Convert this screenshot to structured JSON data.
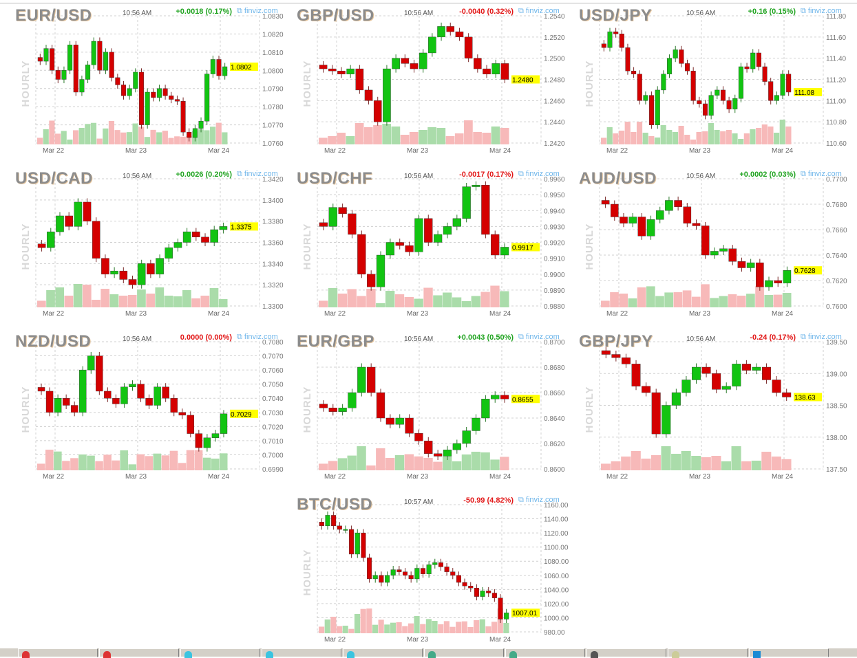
{
  "vertical_label": "HOURLY",
  "brand": "finviz.com",
  "dates": [
    "Mar 22",
    "Mar 23",
    "Mar 24"
  ],
  "colors": {
    "up": "#12c412",
    "down": "#d40000",
    "up_change": "#22a422",
    "down_change": "#e21818",
    "price_tag": "#ffff00",
    "brand": "#6fb6ea"
  },
  "charts": [
    {
      "pair": "EUR/USD",
      "time": "10:56 AM",
      "change": "+0.0018 (0.17%)",
      "direction": "up",
      "price": "1.0802",
      "ticks": [
        "1.0830",
        "1.0820",
        "1.0810",
        "1.0800",
        "1.0790",
        "1.0780",
        "1.0770",
        "1.0760"
      ],
      "hidden_tick": "1.0800",
      "closes": [
        1.0805,
        1.0812,
        1.08,
        1.0795,
        1.08,
        1.0814,
        1.0788,
        1.0795,
        1.0803,
        1.0816,
        1.08,
        1.081,
        1.0796,
        1.0792,
        1.0786,
        1.079,
        1.0799,
        1.077,
        1.0788,
        1.0785,
        1.079,
        1.0786,
        1.0784,
        1.0783,
        1.0766,
        1.0763,
        1.0768,
        1.0772,
        1.0798,
        1.0806,
        1.0797,
        1.0802
      ]
    },
    {
      "pair": "GBP/USD",
      "time": "10:56 AM",
      "change": "-0.0040 (0.32%)",
      "direction": "down",
      "price": "1.2480",
      "ticks": [
        "1.2540",
        "1.2520",
        "1.2500",
        "1.2480",
        "1.2460",
        "1.2440",
        "1.2420"
      ],
      "hidden_tick": "1.2480",
      "closes": [
        1.249,
        1.2488,
        1.2485,
        1.249,
        1.247,
        1.246,
        1.244,
        1.249,
        1.25,
        1.2495,
        1.249,
        1.2505,
        1.252,
        1.253,
        1.2525,
        1.252,
        1.25,
        1.249,
        1.2485,
        1.2495,
        1.248
      ]
    },
    {
      "pair": "USD/JPY",
      "time": "10:56 AM",
      "change": "+0.16 (0.15%)",
      "direction": "up",
      "price": "111.08",
      "ticks": [
        "111.80",
        "111.60",
        "111.40",
        "111.20",
        "111.00",
        "110.80",
        "110.60"
      ],
      "hidden_tick": "",
      "closes": [
        111.5,
        111.65,
        111.63,
        111.5,
        111.28,
        111.25,
        111.0,
        111.05,
        110.77,
        111.1,
        111.25,
        111.4,
        111.48,
        111.35,
        111.28,
        111.0,
        110.97,
        110.86,
        111.05,
        111.1,
        111.0,
        110.92,
        111.02,
        111.32,
        111.3,
        111.45,
        111.32,
        111.18,
        111.0,
        111.05,
        111.25,
        111.08
      ]
    },
    {
      "pair": "USD/CAD",
      "time": "10:56 AM",
      "change": "+0.0026 (0.20%)",
      "direction": "up",
      "price": "1.3375",
      "ticks": [
        "1.3420",
        "1.3400",
        "1.3380",
        "1.3360",
        "1.3340",
        "1.3320",
        "1.3300"
      ],
      "hidden_tick": "1.3380",
      "closes": [
        1.3355,
        1.337,
        1.3385,
        1.3375,
        1.3398,
        1.338,
        1.3345,
        1.333,
        1.3333,
        1.3325,
        1.332,
        1.334,
        1.333,
        1.3345,
        1.3355,
        1.336,
        1.337,
        1.3365,
        1.336,
        1.3372,
        1.3375
      ]
    },
    {
      "pair": "USD/CHF",
      "time": "10:56 AM",
      "change": "-0.0017 (0.17%)",
      "direction": "down",
      "price": "0.9917",
      "ticks": [
        "0.9960",
        "0.9950",
        "0.9940",
        "0.9930",
        "0.9920",
        "0.9910",
        "0.9900",
        "0.9890",
        "0.9880"
      ],
      "hidden_tick": "0.9920",
      "closes": [
        0.993,
        0.9942,
        0.9938,
        0.9925,
        0.99,
        0.9892,
        0.9912,
        0.992,
        0.9918,
        0.9914,
        0.9935,
        0.992,
        0.9925,
        0.993,
        0.9935,
        0.9955,
        0.9956,
        0.9925,
        0.9912,
        0.9917
      ]
    },
    {
      "pair": "AUD/USD",
      "time": "10:56 AM",
      "change": "+0.0002 (0.03%)",
      "direction": "up",
      "price": "0.7628",
      "ticks": [
        "0.7700",
        "0.7680",
        "0.7660",
        "0.7640",
        "0.7620",
        "0.7600"
      ],
      "hidden_tick": "",
      "closes": [
        0.768,
        0.767,
        0.7665,
        0.767,
        0.7655,
        0.7668,
        0.7675,
        0.7683,
        0.7678,
        0.7665,
        0.7663,
        0.764,
        0.7643,
        0.7645,
        0.7635,
        0.763,
        0.7634,
        0.7615,
        0.762,
        0.7618,
        0.7628
      ]
    },
    {
      "pair": "NZD/USD",
      "time": "10:56 AM",
      "change": "0.0000 (0.00%)",
      "direction": "down",
      "price": "0.7029",
      "ticks": [
        "0.7080",
        "0.7070",
        "0.7060",
        "0.7050",
        "0.7040",
        "0.7030",
        "0.7020",
        "0.7010",
        "0.7000",
        "0.6990"
      ],
      "hidden_tick": "0.7030",
      "closes": [
        0.7045,
        0.703,
        0.704,
        0.7035,
        0.703,
        0.706,
        0.707,
        0.7045,
        0.704,
        0.7036,
        0.7048,
        0.705,
        0.704,
        0.7035,
        0.7048,
        0.704,
        0.703,
        0.7028,
        0.7015,
        0.7005,
        0.7012,
        0.7015,
        0.7029
      ]
    },
    {
      "pair": "EUR/GBP",
      "time": "10:56 AM",
      "change": "+0.0043 (0.50%)",
      "direction": "up",
      "price": "0.8655",
      "ticks": [
        "0.8700",
        "0.8680",
        "0.8660",
        "0.8640",
        "0.8620",
        "0.8600"
      ],
      "hidden_tick": "",
      "closes": [
        0.8648,
        0.8645,
        0.8648,
        0.866,
        0.868,
        0.866,
        0.864,
        0.8635,
        0.864,
        0.8628,
        0.8622,
        0.8612,
        0.861,
        0.8615,
        0.862,
        0.863,
        0.864,
        0.8655,
        0.8658,
        0.8655
      ]
    },
    {
      "pair": "GBP/JPY",
      "time": "10:56 AM",
      "change": "-0.24 (0.17%)",
      "direction": "down",
      "price": "138.63",
      "ticks": [
        "139.50",
        "139.00",
        "138.50",
        "138.00",
        "137.50"
      ],
      "hidden_tick": "",
      "closes": [
        139.3,
        139.25,
        139.15,
        138.8,
        138.7,
        138.05,
        138.5,
        138.7,
        138.9,
        139.1,
        139.0,
        138.75,
        138.8,
        139.15,
        139.05,
        139.1,
        138.9,
        138.7,
        138.63
      ]
    },
    {
      "pair": "BTC/USD",
      "time": "10:57 AM",
      "change": "-50.99 (4.82%)",
      "direction": "down",
      "price": "1007.01",
      "ticks": [
        "1160.00",
        "1140.00",
        "1120.00",
        "1100.00",
        "1080.00",
        "1060.00",
        "1040.00",
        "1020.00",
        "1000.00",
        "980.00"
      ],
      "hidden_tick": "",
      "closes": [
        1130,
        1145,
        1130,
        1125,
        1125,
        1090,
        1120,
        1085,
        1055,
        1060,
        1050,
        1060,
        1068,
        1065,
        1060,
        1055,
        1070,
        1062,
        1075,
        1078,
        1072,
        1065,
        1060,
        1050,
        1045,
        1042,
        1030,
        1038,
        1035,
        1028,
        998,
        1007.01
      ]
    }
  ]
}
